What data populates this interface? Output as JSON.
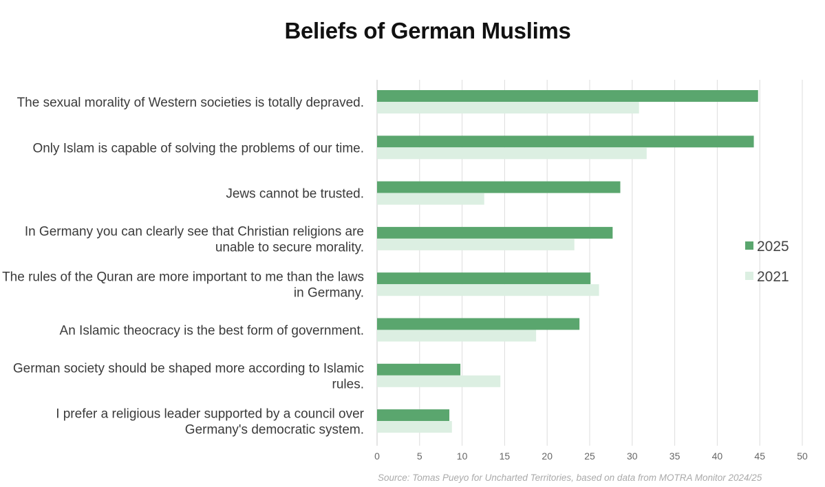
{
  "chart_data": {
    "type": "bar",
    "orientation": "horizontal",
    "title": "Beliefs of German Muslims",
    "categories": [
      "The sexual morality of Western societies is totally depraved.",
      "Only Islam is capable of solving the problems of our time.",
      "Jews cannot be trusted.",
      "In Germany you can clearly see that Christian religions are unable to secure morality.",
      "The rules of the Quran are more important to me than the laws in Germany.",
      "An Islamic theocracy is the best form of government.",
      "German society should be shaped more according to Islamic rules.",
      "I prefer a religious leader supported by a council over Germany's democratic system."
    ],
    "category_lines": [
      [
        "The sexual morality of Western societies is totally depraved."
      ],
      [
        "Only Islam is capable of solving the problems of our time."
      ],
      [
        "Jews cannot be trusted."
      ],
      [
        "In Germany you can clearly see that Christian religions are",
        "unable to secure morality."
      ],
      [
        "The rules of the Quran are more important to me than the laws",
        "in Germany."
      ],
      [
        "An Islamic theocracy is the best form of government."
      ],
      [
        "German society should be shaped more according to Islamic",
        "rules."
      ],
      [
        "I prefer a religious leader supported by a council over",
        "Germany's democratic system."
      ]
    ],
    "series": [
      {
        "name": "2025",
        "color": "#5aa66e",
        "values": [
          44.8,
          44.3,
          28.6,
          27.7,
          25.1,
          23.8,
          9.8,
          8.5
        ]
      },
      {
        "name": "2021",
        "color": "#dcefe2",
        "values": [
          30.8,
          31.7,
          12.6,
          23.2,
          26.1,
          18.7,
          14.5,
          8.8
        ]
      }
    ],
    "xlim": [
      0,
      50
    ],
    "xticks": [
      "0",
      "5",
      "10",
      "15",
      "20",
      "25",
      "30",
      "35",
      "40",
      "45",
      "50"
    ],
    "grid": true,
    "legend_position": "right",
    "xlabel": "",
    "ylabel": ""
  },
  "source_note": "Source: Tomas Pueyo for Uncharted Territories, based on data from MOTRA Monitor 2024/25"
}
